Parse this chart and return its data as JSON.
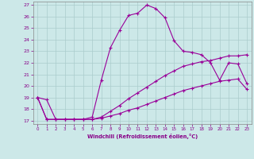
{
  "xlabel": "Windchill (Refroidissement éolien,°C)",
  "bg_color": "#cce8e8",
  "grid_color": "#aacccc",
  "line_color": "#990099",
  "xlim": [
    -0.5,
    23.5
  ],
  "ylim": [
    16.7,
    27.3
  ],
  "yticks": [
    17,
    18,
    19,
    20,
    21,
    22,
    23,
    24,
    25,
    26,
    27
  ],
  "xticks": [
    0,
    1,
    2,
    3,
    4,
    5,
    6,
    7,
    8,
    9,
    10,
    11,
    12,
    13,
    14,
    15,
    16,
    17,
    18,
    19,
    20,
    21,
    22,
    23
  ],
  "line1_x": [
    0,
    1,
    2,
    3,
    4,
    5,
    6,
    7,
    8,
    9,
    10,
    11,
    12,
    13,
    14,
    15,
    16,
    17,
    18,
    19,
    20,
    21,
    22,
    23
  ],
  "line1_y": [
    19.0,
    18.8,
    17.1,
    17.1,
    17.1,
    17.1,
    17.3,
    20.5,
    23.3,
    24.8,
    26.1,
    26.3,
    27.0,
    26.7,
    25.9,
    23.9,
    23.0,
    22.9,
    22.7,
    22.0,
    20.5,
    22.0,
    21.9,
    20.2
  ],
  "line2_x": [
    0,
    1,
    2,
    3,
    4,
    5,
    6,
    7,
    8,
    9,
    10,
    11,
    12,
    13,
    14,
    15,
    16,
    17,
    18,
    19,
    20,
    21,
    22,
    23
  ],
  "line2_y": [
    19.0,
    17.1,
    17.1,
    17.1,
    17.1,
    17.1,
    17.1,
    17.3,
    17.8,
    18.3,
    18.9,
    19.4,
    19.9,
    20.4,
    20.9,
    21.3,
    21.7,
    21.9,
    22.1,
    22.2,
    22.4,
    22.6,
    22.6,
    22.7
  ],
  "line3_x": [
    0,
    1,
    2,
    3,
    4,
    5,
    6,
    7,
    8,
    9,
    10,
    11,
    12,
    13,
    14,
    15,
    16,
    17,
    18,
    19,
    20,
    21,
    22,
    23
  ],
  "line3_y": [
    19.0,
    17.1,
    17.1,
    17.1,
    17.1,
    17.1,
    17.1,
    17.2,
    17.4,
    17.6,
    17.9,
    18.1,
    18.4,
    18.7,
    19.0,
    19.3,
    19.6,
    19.8,
    20.0,
    20.2,
    20.4,
    20.5,
    20.6,
    19.7
  ]
}
